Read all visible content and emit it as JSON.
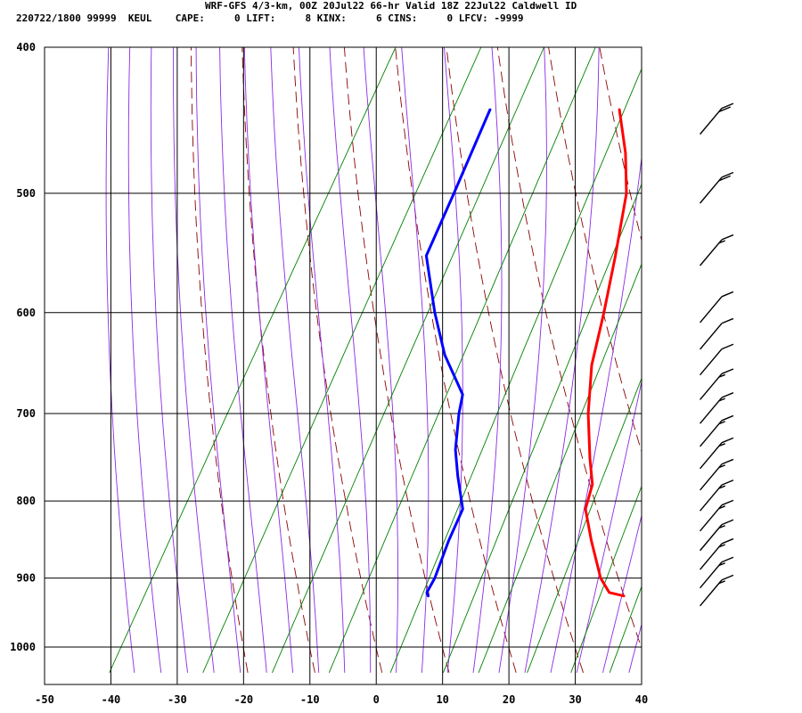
{
  "header": {
    "line1": "WRF-GFS 4/3-km, 00Z 20Jul22 66-hr Valid 18Z 22Jul22 Caldwell ID",
    "line2": "220722/1800 99999  KEUL    CAPE:     0 LIFT:     8 KINX:     6 CINS:     0 LFCV: -9999"
  },
  "colors": {
    "temperature": "#ff0000",
    "dewpoint": "#0000ff",
    "dry_adiabat": "#8b0000",
    "moist_adiabat": "#8a2be2",
    "mixing_ratio": "#008000",
    "grid": "#000000",
    "barb": "#000000"
  },
  "chart_data": {
    "type": "line",
    "diagram": "skew-T log-P",
    "x_axis": {
      "range": [
        -50,
        40
      ],
      "ticks": [
        "-50",
        "-40",
        "-30",
        "-20",
        "-10",
        "0",
        "10",
        "20",
        "30",
        "40"
      ]
    },
    "y_axis": {
      "scale": "log",
      "range": [
        1040,
        400
      ],
      "ticks": [
        "400",
        "500",
        "600",
        "700",
        "800",
        "900",
        "1000"
      ]
    },
    "grid": true,
    "series": [
      {
        "key": "temperature",
        "points": [
          [
            925,
            30.0
          ],
          [
            920,
            27.5
          ],
          [
            900,
            25.0
          ],
          [
            850,
            20.5
          ],
          [
            810,
            17.0
          ],
          [
            780,
            16.0
          ],
          [
            750,
            13.5
          ],
          [
            700,
            9.5
          ],
          [
            650,
            6.0
          ],
          [
            600,
            3.5
          ],
          [
            550,
            0.5
          ],
          [
            500,
            -3.0
          ],
          [
            470,
            -6.5
          ],
          [
            440,
            -11.0
          ]
        ]
      },
      {
        "key": "dewpoint",
        "points": [
          [
            925,
            0.5
          ],
          [
            920,
            0.0
          ],
          [
            900,
            0.0
          ],
          [
            850,
            -1.0
          ],
          [
            810,
            -1.5
          ],
          [
            770,
            -5.0
          ],
          [
            740,
            -7.5
          ],
          [
            700,
            -10.0
          ],
          [
            680,
            -11.0
          ],
          [
            640,
            -17.0
          ],
          [
            600,
            -22.0
          ],
          [
            550,
            -28.0
          ],
          [
            500,
            -29.0
          ],
          [
            440,
            -30.5
          ]
        ]
      }
    ],
    "wind_barbs": [
      {
        "pressure": 925,
        "speed_kt": 15
      },
      {
        "pressure": 900,
        "speed_kt": 15
      },
      {
        "pressure": 875,
        "speed_kt": 15
      },
      {
        "pressure": 850,
        "speed_kt": 15
      },
      {
        "pressure": 825,
        "speed_kt": 15
      },
      {
        "pressure": 800,
        "speed_kt": 15
      },
      {
        "pressure": 775,
        "speed_kt": 15
      },
      {
        "pressure": 750,
        "speed_kt": 15
      },
      {
        "pressure": 725,
        "speed_kt": 15
      },
      {
        "pressure": 700,
        "speed_kt": 15
      },
      {
        "pressure": 675,
        "speed_kt": 15
      },
      {
        "pressure": 650,
        "speed_kt": 10
      },
      {
        "pressure": 625,
        "speed_kt": 10
      },
      {
        "pressure": 600,
        "speed_kt": 10
      },
      {
        "pressure": 550,
        "speed_kt": 15
      },
      {
        "pressure": 500,
        "speed_kt": 20
      },
      {
        "pressure": 450,
        "speed_kt": 20
      }
    ]
  }
}
